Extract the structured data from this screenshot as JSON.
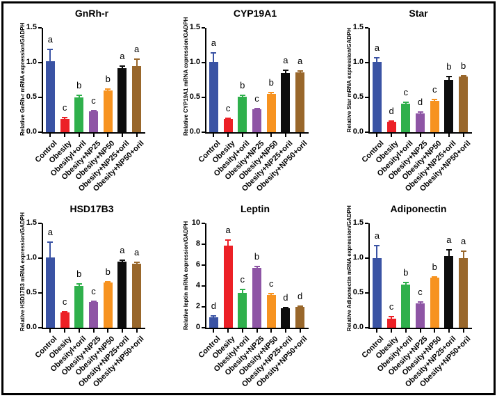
{
  "style": {
    "background": "#ffffff",
    "frame_color": "#000000",
    "axis_color": "#000000",
    "bar_colors": [
      "#3A53A4",
      "#EC2026",
      "#2FB04C",
      "#8E55A5",
      "#F79320",
      "#0D0D0D",
      "#99672B"
    ]
  },
  "chart_data": [
    {
      "type": "bar",
      "title": "GnRh-r",
      "ylabel": "Relative GnRh-r mRNA expression/GADPH",
      "xlabel": "",
      "categories": [
        "Control",
        "Obesity",
        "Obesityl+oril",
        "Obesity+NP25",
        "Obesity+NP50",
        "Obesity+NP25+oril",
        "Obesity+NP50+oril"
      ],
      "values": [
        1.02,
        0.19,
        0.5,
        0.3,
        0.6,
        0.92,
        0.95
      ],
      "errors": [
        0.17,
        0.02,
        0.03,
        0.01,
        0.02,
        0.03,
        0.1
      ],
      "sig_letters": [
        "a",
        "c",
        "b",
        "c",
        "b",
        "a",
        "a"
      ],
      "ylim": [
        0,
        1.5
      ],
      "yticks": [
        "0.0",
        "0.5",
        "1.0",
        "1.5"
      ],
      "grid": false,
      "legend": false
    },
    {
      "type": "bar",
      "title": "CYP19A1",
      "ylabel": "Relative CYP19A1 mRNA expression/GADPH",
      "xlabel": "",
      "categories": [
        "Control",
        "Obesity",
        "Obesityl+oril",
        "Obesity+NP25",
        "Obesity+NP50",
        "Obesity+NP25+oril",
        "Obesity+NP50+oril"
      ],
      "values": [
        1.01,
        0.19,
        0.51,
        0.33,
        0.55,
        0.85,
        0.86
      ],
      "errors": [
        0.13,
        0.01,
        0.02,
        0.01,
        0.02,
        0.04,
        0.02
      ],
      "sig_letters": [
        "a",
        "c",
        "b",
        "c",
        "b",
        "a",
        "a"
      ],
      "ylim": [
        0,
        1.5
      ],
      "yticks": [
        "0.0",
        "0.5",
        "1.0",
        "1.5"
      ],
      "grid": false,
      "legend": false
    },
    {
      "type": "bar",
      "title": "Star",
      "ylabel": "Relative Star mRNA expression/GADPH",
      "xlabel": "",
      "categories": [
        "Control",
        "Obesity",
        "Obesityl+oril",
        "Obesity+NP25",
        "Obesity+NP50",
        "Obesity+NP25+oril",
        "Obesity+NP50+oril"
      ],
      "values": [
        1.01,
        0.15,
        0.41,
        0.27,
        0.45,
        0.75,
        0.8
      ],
      "errors": [
        0.06,
        0.01,
        0.02,
        0.02,
        0.02,
        0.05,
        0.01
      ],
      "sig_letters": [
        "a",
        "d",
        "c",
        "d",
        "c",
        "b",
        "b"
      ],
      "ylim": [
        0,
        1.5
      ],
      "yticks": [
        "0.0",
        "0.5",
        "1.0",
        "1.5"
      ],
      "grid": false,
      "legend": false
    },
    {
      "type": "bar",
      "title": "HSD17B3",
      "ylabel": "Relative HSD17B3 mRNA expression/GADPH",
      "xlabel": "",
      "categories": [
        "Control",
        "Obesity",
        "Obesityl+oril",
        "Obesity+NP25",
        "Obesity+NP50",
        "Obesity+NP25+oril",
        "Obesity+NP50+oril"
      ],
      "values": [
        1.01,
        0.22,
        0.6,
        0.37,
        0.65,
        0.95,
        0.92
      ],
      "errors": [
        0.22,
        0.01,
        0.03,
        0.01,
        0.01,
        0.02,
        0.02
      ],
      "sig_letters": [
        "a",
        "c",
        "b",
        "c",
        "b",
        "a",
        "a"
      ],
      "ylim": [
        0,
        1.5
      ],
      "yticks": [
        "0.0",
        "0.5",
        "1.0",
        "1.5"
      ],
      "grid": false,
      "legend": false
    },
    {
      "type": "bar",
      "title": "Leptin",
      "ylabel": "Relative leptin mRNA expression/GADPH",
      "xlabel": "",
      "categories": [
        "Control",
        "Obesity",
        "Obesityl+oril",
        "Obesity+NP25",
        "Obesity+NP50",
        "Obesity+NP25+oril",
        "Obesity+NP50+oril"
      ],
      "values": [
        1.0,
        7.85,
        3.35,
        5.75,
        3.15,
        1.9,
        2.0
      ],
      "errors": [
        0.15,
        0.55,
        0.35,
        0.15,
        0.15,
        0.05,
        0.05
      ],
      "sig_letters": [
        "d",
        "a",
        "c",
        "b",
        "c",
        "d",
        "d"
      ],
      "ylim": [
        0,
        10
      ],
      "yticks": [
        "0",
        "2",
        "4",
        "6",
        "8",
        "10"
      ],
      "grid": false,
      "legend": false
    },
    {
      "type": "bar",
      "title": "Adiponectin",
      "ylabel": "Relative Adiponectin mRNA expression/GADPH",
      "xlabel": "",
      "categories": [
        "Control",
        "Obesity",
        "Obesityl+oril",
        "Obesity+NP25",
        "Obesity+NP50",
        "Obesity+NP25+oril",
        "Obesity+NP50+oril"
      ],
      "values": [
        1.0,
        0.13,
        0.62,
        0.35,
        0.72,
        1.03,
        1.0
      ],
      "errors": [
        0.18,
        0.03,
        0.03,
        0.02,
        0.01,
        0.09,
        0.1
      ],
      "sig_letters": [
        "a",
        "c",
        "b",
        "c",
        "b",
        "a",
        "a"
      ],
      "ylim": [
        0,
        1.5
      ],
      "yticks": [
        "0.0",
        "0.5",
        "1.0",
        "1.5"
      ],
      "grid": false,
      "legend": false
    }
  ]
}
